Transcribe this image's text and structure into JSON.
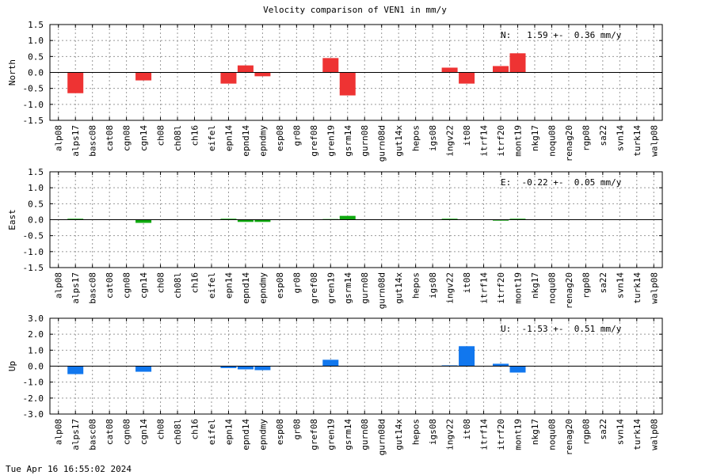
{
  "footer": {
    "timestamp": "Tue Apr 16 16:55:02 2024"
  },
  "chart_data": {
    "type": "bar",
    "title": "Velocity comparison of VEN1 in mm/y",
    "categories": [
      "alp08",
      "alps17",
      "basc08",
      "cat08",
      "cgn08",
      "cgn14",
      "ch08",
      "ch08l",
      "ch16",
      "eifel",
      "epn14",
      "epnd14",
      "epndmy",
      "esp08",
      "gr08",
      "gref08",
      "gren19",
      "gsrm14",
      "gurn08",
      "gurn08d",
      "gut14x",
      "hepos",
      "igs08",
      "ingv22",
      "it08",
      "itrf14",
      "itrf20",
      "mont19",
      "nkg17",
      "noqu08",
      "renag20",
      "rgp08",
      "sa22",
      "svn14",
      "turk14",
      "walp08"
    ],
    "grid": true,
    "panels": [
      {
        "ylabel": "North",
        "ylim": [
          -1.5,
          1.5
        ],
        "yticks": [
          "1.5",
          "1.0",
          "0.5",
          "0.0",
          "-0.5",
          "-1.0",
          "-1.5"
        ],
        "color": "#ee3333",
        "annotation": "N:   1.59 +-  0.36 mm/y",
        "values": [
          null,
          -0.65,
          null,
          null,
          null,
          -0.25,
          null,
          null,
          null,
          null,
          -0.35,
          0.22,
          -0.12,
          null,
          null,
          null,
          0.45,
          -0.72,
          null,
          null,
          null,
          null,
          null,
          0.15,
          -0.35,
          null,
          0.2,
          0.6,
          null,
          null,
          null,
          null,
          null,
          null,
          null,
          null
        ]
      },
      {
        "ylabel": "East",
        "ylim": [
          -1.5,
          1.5
        ],
        "yticks": [
          "1.5",
          "1.0",
          "0.5",
          "0.0",
          "-0.5",
          "-1.0",
          "-1.5"
        ],
        "color": "#11aa11",
        "annotation": "E:  -0.22 +-  0.05 mm/y",
        "values": [
          null,
          0.03,
          null,
          null,
          null,
          -0.1,
          null,
          null,
          null,
          null,
          0.03,
          -0.07,
          -0.07,
          null,
          null,
          null,
          0.02,
          0.12,
          null,
          null,
          null,
          null,
          null,
          0.03,
          null,
          null,
          -0.03,
          0.03,
          null,
          null,
          null,
          null,
          null,
          null,
          null,
          null
        ]
      },
      {
        "ylabel": "Up",
        "ylim": [
          -3.0,
          3.0
        ],
        "yticks": [
          "3.0",
          "2.0",
          "1.0",
          "0.0",
          "-1.0",
          "-2.0",
          "-3.0"
        ],
        "color": "#1177ee",
        "annotation": "U:  -1.53 +-  0.51 mm/y",
        "values": [
          null,
          -0.5,
          null,
          null,
          null,
          -0.35,
          null,
          null,
          null,
          null,
          -0.12,
          -0.2,
          -0.25,
          null,
          null,
          null,
          0.4,
          null,
          null,
          null,
          null,
          null,
          null,
          0.05,
          1.25,
          null,
          0.15,
          -0.4,
          null,
          null,
          null,
          null,
          null,
          null,
          null,
          null
        ]
      }
    ]
  }
}
